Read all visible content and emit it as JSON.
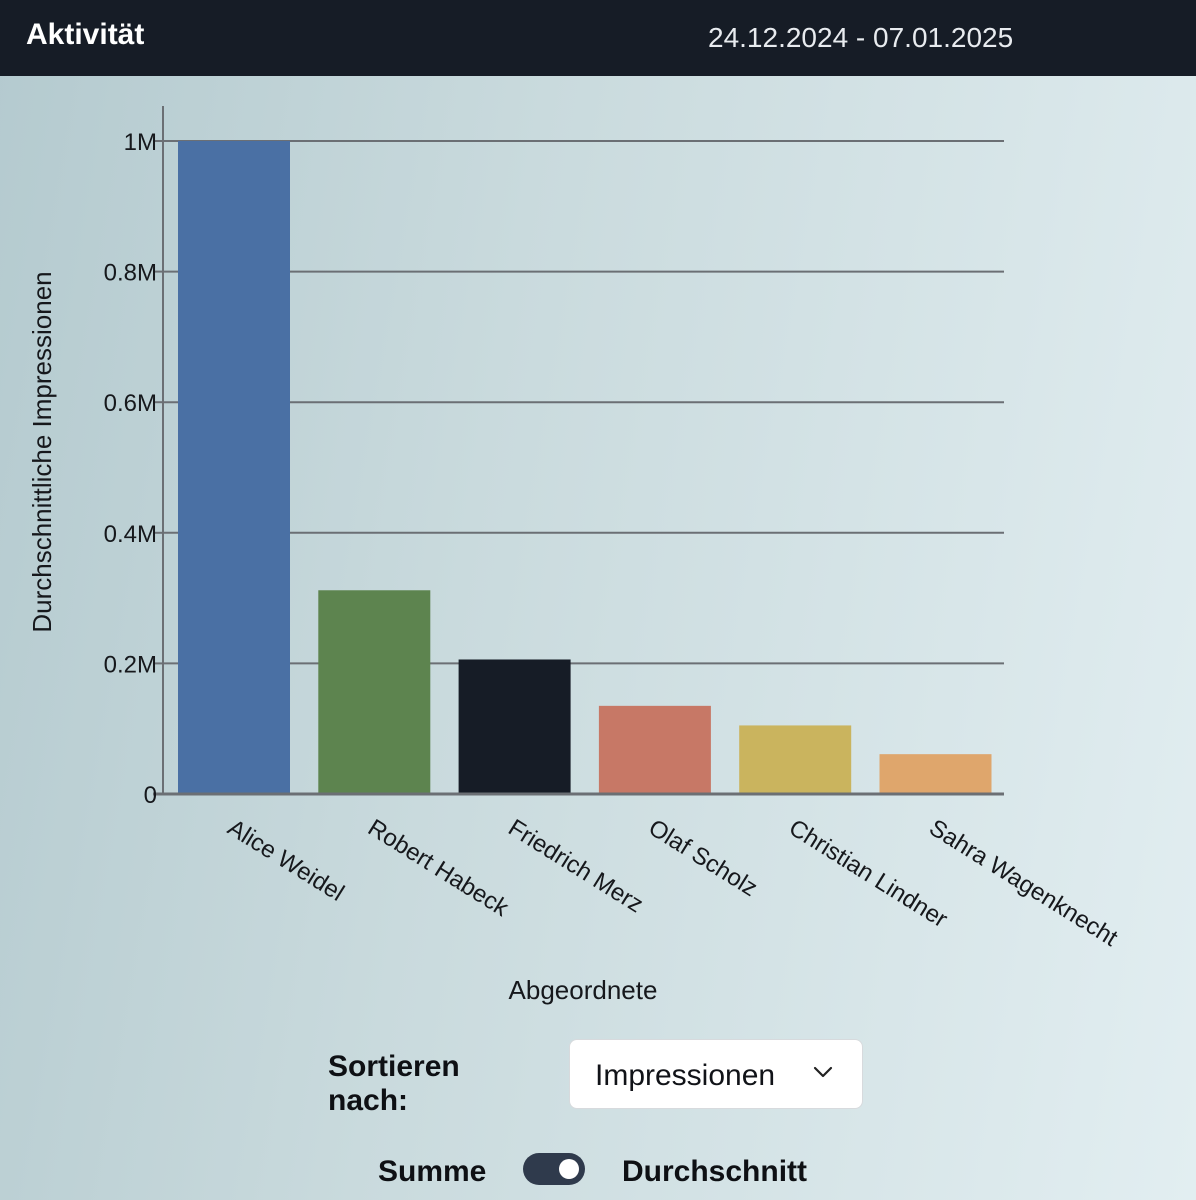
{
  "header": {
    "title": "Aktivität",
    "date_range": "24.12.2024 - 07.01.2025"
  },
  "chart_data": {
    "type": "bar",
    "categories": [
      "Alice Weidel",
      "Robert Habeck",
      "Friedrich Merz",
      "Olaf Scholz",
      "Christian Lindner",
      "Sahra Wagenknecht"
    ],
    "values": [
      1000000,
      312000,
      206000,
      135000,
      105000,
      61000
    ],
    "colors": [
      "#4a70a4",
      "#5d844f",
      "#161c26",
      "#c77866",
      "#cab45e",
      "#dfa66c"
    ],
    "xlabel": "Abgeordnete",
    "ylabel": "Durchschnittliche Impressionen",
    "ylim": [
      0,
      1000000
    ],
    "yticks": [
      0,
      200000,
      400000,
      600000,
      800000,
      1000000
    ],
    "ytick_labels": [
      "0",
      "0.2M",
      "0.4M",
      "0.6M",
      "0.8M",
      "1M"
    ],
    "grid": true
  },
  "controls": {
    "sort_label": "Sortieren nach:",
    "sort_value": "Impressionen",
    "toggle_left_label": "Summe",
    "toggle_right_label": "Durchschnitt",
    "toggle_state": "Durchschnitt"
  }
}
